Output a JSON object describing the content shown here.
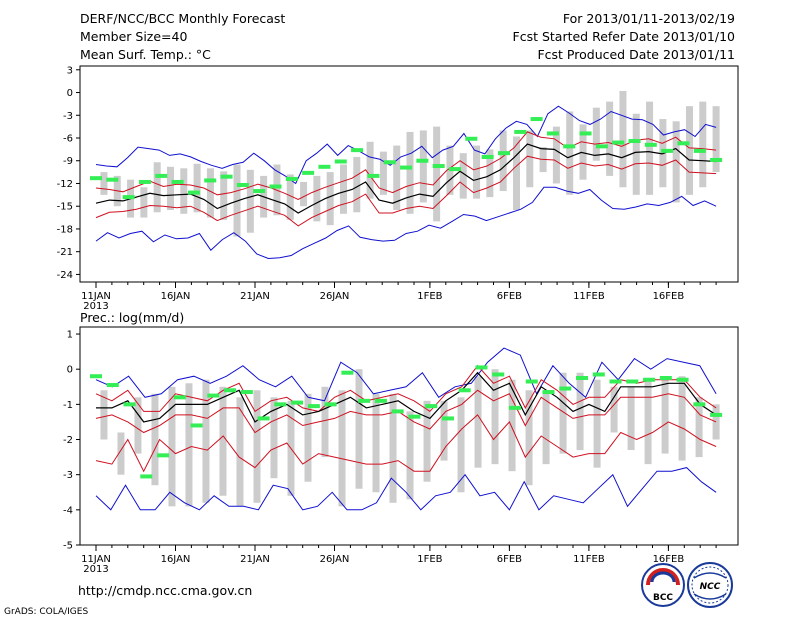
{
  "header": {
    "title_line1": "DERF/NCC/BCC Monthly Forecast",
    "title_line2": "Member Size=40",
    "title_line3": "Mean Surf. Temp.: °C",
    "right_line1": "For 2013/01/11-2013/02/19",
    "right_line2": "Fcst Started Refer Date 2013/01/10",
    "right_line3": "Fcst Produced Date 2013/01/11"
  },
  "precip_title": "Prec.: log(mm/d)",
  "footer": {
    "url": "http://cmdp.ncc.cma.gov.cn",
    "grads": "GrADS: COLA/IGES",
    "logo_bcc": "BCC",
    "logo_ncc": "NCC"
  },
  "colors": {
    "max_min": "#1010d0",
    "spread": "#d01020",
    "mean": "#000000",
    "box": "#cccccc",
    "obs": "#33ee55"
  },
  "chart_data": [
    {
      "type": "line",
      "title": "Mean Surf. Temp.: °C",
      "ylim": [
        -25,
        3.5
      ],
      "yticks": [
        3,
        0,
        -3,
        -6,
        -9,
        -12,
        -15,
        -18,
        -21,
        -24
      ],
      "x_tick_days": [
        0,
        5,
        10,
        15,
        21,
        26,
        31,
        36
      ],
      "x_tick_labels": [
        "11JAN",
        "16JAN",
        "21JAN",
        "26JAN",
        "1FEB",
        "6FEB",
        "11FEB",
        "16FEB"
      ],
      "x_year_label": "2013",
      "n_days": 40,
      "series": [
        {
          "name": "max",
          "values": [
            -9.5,
            -9.7,
            -9.8,
            -8.6,
            -7.2,
            -7.4,
            -7.6,
            -8.3,
            -8.1,
            -8.5,
            -9.1,
            -9.6,
            -10,
            -9.5,
            -9.2,
            -8,
            -9,
            -10.2,
            -11,
            -12,
            -9,
            -8,
            -6.8,
            -8.3,
            -7,
            -7.7,
            -8.5,
            -8.8,
            -9.6,
            -8.5,
            -8,
            -7.1,
            -8.6,
            -7.6,
            -7.1,
            -5.4,
            -7.6,
            -8.1,
            -6.1,
            -4.7,
            -3.8,
            -4.2,
            -5.8,
            -2.8,
            -1.8,
            -2.7,
            -3.7,
            -4.2,
            -3.5,
            -2.5,
            -3,
            -3.5,
            -3.6,
            -4.2,
            -5.6,
            -5.2,
            -4.9,
            -5.8,
            -4.2,
            -4.6
          ]
        },
        {
          "name": "min",
          "values": [
            -19.6,
            -18.5,
            -19.2,
            -18.6,
            -18.3,
            -19.7,
            -18.8,
            -19.3,
            -19.2,
            -18.6,
            -20.8,
            -19.4,
            -18.5,
            -19.6,
            -21.3,
            -21.9,
            -21.8,
            -21.5,
            -20.6,
            -19.9,
            -19.2,
            -18.2,
            -17.6,
            -19.1,
            -19.4,
            -19.6,
            -19.5,
            -18.6,
            -18.3,
            -17.5,
            -17.9,
            -17,
            -16.1,
            -16.3,
            -16.9,
            -16.4,
            -15.9,
            -15.4,
            -14.5,
            -12.5,
            -12.5,
            -13,
            -13.3,
            -12.8,
            -14.2,
            -15.3,
            -15.4,
            -15.1,
            -14.7,
            -14.9,
            -14.5,
            -13.7,
            -14.9,
            -14.3,
            -15
          ]
        },
        {
          "name": "upper",
          "values": [
            -12.6,
            -12.8,
            -13.1,
            -12.4,
            -11.7,
            -12.4,
            -12.1,
            -12.2,
            -12.6,
            -13.5,
            -13.2,
            -12.7,
            -12.1,
            -12.6,
            -13.3,
            -14.1,
            -13.2,
            -12.5,
            -11.9,
            -11.3,
            -10.2,
            -12.6,
            -13.2,
            -12.4,
            -11.9,
            -12.2,
            -10.3,
            -9,
            -10.2,
            -9.7,
            -8.7,
            -7.3,
            -5.2,
            -5.9,
            -6.1,
            -7.3,
            -6.5,
            -6.8,
            -6.6,
            -7.1,
            -6.3,
            -6.1,
            -6.7,
            -5.9,
            -7.3,
            -7.4,
            -7.6
          ]
        },
        {
          "name": "mean",
          "values": [
            -14.6,
            -14.2,
            -14.3,
            -13.8,
            -13.3,
            -13.6,
            -13.5,
            -13.4,
            -14.1,
            -15.3,
            -14.6,
            -14,
            -13.5,
            -14.1,
            -14.7,
            -15.9,
            -14.9,
            -14,
            -13.3,
            -12.8,
            -11.8,
            -14.2,
            -14.6,
            -13.9,
            -13.4,
            -13.7,
            -11.9,
            -10.4,
            -11.6,
            -11.1,
            -10.2,
            -8.6,
            -6.8,
            -7.4,
            -7.5,
            -8.6,
            -7.9,
            -8.3,
            -8.1,
            -8.6,
            -7.9,
            -7.8,
            -8.1,
            -7.4,
            -8.9,
            -9,
            -9.1
          ]
        },
        {
          "name": "lower",
          "values": [
            -16.5,
            -15.8,
            -15.7,
            -15.4,
            -14.9,
            -15,
            -15.2,
            -15,
            -15.8,
            -16.9,
            -16.2,
            -15.6,
            -15,
            -15.6,
            -16.2,
            -17.6,
            -16.5,
            -15.7,
            -14.9,
            -14.4,
            -13.4,
            -15.9,
            -15.9,
            -15.3,
            -15,
            -15.3,
            -13.6,
            -11.8,
            -13.2,
            -12.6,
            -11.8,
            -10,
            -8.4,
            -8.8,
            -8.9,
            -10,
            -9.3,
            -9.7,
            -9.5,
            -10.1,
            -9.4,
            -9.3,
            -9.6,
            -8.9,
            -10.5,
            -10.6,
            -10.7
          ]
        },
        {
          "name": "box_high",
          "values": [
            -10.5,
            -11,
            -11.5,
            -12.5,
            -9.2,
            -9.8,
            -10,
            -9.4,
            -10,
            -10.4,
            -9.5,
            -10.2,
            -11,
            -9.5,
            -10.8,
            -11.8,
            -11,
            -10.5,
            -9.5,
            -8.5,
            -6.5,
            -7.8,
            -7,
            -5.2,
            -5,
            -4.5,
            -7,
            -8,
            -7,
            -7.5,
            -5,
            -5.8,
            -5,
            -7.2,
            -4.5,
            -2.5,
            -4.2,
            -2,
            -1.2,
            0.2,
            -2.8,
            -1.2,
            -3.5,
            -3.8,
            -1.8,
            -1.2,
            -1.8,
            -2.2,
            -2.5,
            -3.8
          ]
        },
        {
          "name": "box_low",
          "values": [
            -13.5,
            -15,
            -16.5,
            -16.5,
            -15.8,
            -15.5,
            -16,
            -15.8,
            -16.5,
            -16.8,
            -19,
            -18.5,
            -16.5,
            -16.2,
            -16.8,
            -15,
            -17,
            -17.5,
            -16,
            -15.8,
            -14,
            -13.5,
            -15.5,
            -16,
            -14.5,
            -17,
            -13.5,
            -14,
            -14,
            -13.8,
            -13,
            -15.5,
            -12.5,
            -10.5,
            -12,
            -13.5,
            -11.5,
            -9,
            -11,
            -12.5,
            -13.5,
            -13.5,
            -12.5,
            -14.5,
            -13.5,
            -12.5,
            -10.5
          ]
        },
        {
          "name": "observed",
          "values": [
            -11.3,
            -11.5,
            -13.8,
            -11.8,
            -11,
            -11.8,
            -13.2,
            -11.6,
            -11.1,
            -12.2,
            -13,
            -12.4,
            -11.4,
            -10.6,
            -9.8,
            -9.1,
            -7.6,
            -11,
            -9.2,
            -9.9,
            -9,
            -9.7,
            -10.1,
            -6.1,
            -8.5,
            -8,
            -5.2,
            -3.5,
            -5.4,
            -7.1,
            -5.4,
            -7.1,
            -6.6,
            -6.4,
            -6.9,
            -7.7,
            -6.7,
            -7.7,
            -8.9
          ]
        }
      ]
    },
    {
      "type": "line",
      "title": "Prec.: log(mm/d)",
      "ylim": [
        -5,
        1.2
      ],
      "yticks": [
        1,
        0,
        -1,
        -2,
        -3,
        -4,
        -5
      ],
      "x_tick_days": [
        0,
        5,
        10,
        15,
        21,
        26,
        31,
        36
      ],
      "x_tick_labels": [
        "11JAN",
        "16JAN",
        "21JAN",
        "26JAN",
        "1FEB",
        "6FEB",
        "11FEB",
        "16FEB"
      ],
      "x_year_label": "2013",
      "n_days": 40,
      "series": [
        {
          "name": "max",
          "values": [
            -0.3,
            -0.5,
            -0.2,
            -0.8,
            -0.7,
            -0.3,
            -0.2,
            -0.4,
            -0.2,
            0.1,
            -0.3,
            -0.5,
            -0.2,
            -0.8,
            -0.9,
            0.2,
            -0.1,
            -0.7,
            -0.6,
            -0.5,
            -0.1,
            -0.8,
            -0.5,
            -0.4,
            0.2,
            0.6,
            0.4,
            -0.7,
            0.1,
            -0.4,
            -0.8,
            0.2,
            -0.3,
            0.3,
            0,
            0.3,
            0.2,
            0.1,
            -0.7
          ]
        },
        {
          "name": "min",
          "values": [
            -3.6,
            -4,
            -3.3,
            -4,
            -4,
            -3.5,
            -3.8,
            -4,
            -3.6,
            -3.9,
            -3.9,
            -4,
            -3.3,
            -3.4,
            -4,
            -3.9,
            -3.5,
            -4,
            -4,
            -3.8,
            -3.1,
            -3.5,
            -4,
            -3.6,
            -3.5,
            -3,
            -3.6,
            -3.5,
            -4,
            -3.2,
            -4,
            -3.6,
            -3.7,
            -3.8,
            -3.4,
            -3,
            -3.9,
            -3.4,
            -2.9,
            -2.9,
            -2.8,
            -3.2,
            -3.5
          ]
        },
        {
          "name": "upper",
          "values": [
            -0.7,
            -0.9,
            -0.6,
            -1.2,
            -1.2,
            -0.7,
            -0.8,
            -0.9,
            -0.6,
            -0.4,
            -1.2,
            -0.9,
            -0.8,
            -1.1,
            -1.2,
            -0.8,
            -0.6,
            -0.9,
            -0.8,
            -0.7,
            -0.9,
            -1.2,
            -0.7,
            -0.5,
            0.1,
            -0.4,
            -0.2,
            -1.1,
            -0.3,
            -0.6,
            -1,
            -0.8,
            -0.8,
            -0.3,
            -0.4,
            -0.3,
            -0.3,
            -0.3,
            -0.8,
            -1.1
          ]
        },
        {
          "name": "mean",
          "values": [
            -1.1,
            -1.1,
            -0.9,
            -1.5,
            -1.4,
            -1,
            -1,
            -1,
            -0.8,
            -0.6,
            -1.5,
            -1.2,
            -1,
            -1.3,
            -1.2,
            -1,
            -0.8,
            -1.1,
            -1,
            -0.9,
            -1.2,
            -1.4,
            -0.9,
            -0.6,
            -0.1,
            -0.6,
            -0.4,
            -1.3,
            -0.5,
            -0.8,
            -1.2,
            -1,
            -1.2,
            -0.5,
            -0.5,
            -0.5,
            -0.4,
            -0.4,
            -1,
            -1.3
          ]
        },
        {
          "name": "lower",
          "values": [
            -1.4,
            -1.3,
            -1.5,
            -1.8,
            -1.6,
            -1.3,
            -1.3,
            -1.4,
            -1.1,
            -1.1,
            -1.8,
            -1.5,
            -1.3,
            -1.6,
            -1.5,
            -1.4,
            -1.2,
            -1.3,
            -1.3,
            -1.2,
            -1.5,
            -1.7,
            -1.2,
            -1,
            -0.6,
            -0.9,
            -0.7,
            -1.6,
            -0.8,
            -1.1,
            -1.4,
            -1.3,
            -1.3,
            -0.8,
            -0.8,
            -0.8,
            -0.7,
            -0.8,
            -1.3,
            -1.5
          ]
        },
        {
          "name": "low_ens",
          "values": [
            -2.6,
            -2.7,
            -2,
            -2.9,
            -2,
            -2.4,
            -2.2,
            -2.3,
            -1.9,
            -2.5,
            -2.8,
            -2.3,
            -2.1,
            -2.7,
            -2.4,
            -2.5,
            -2.6,
            -2.7,
            -2.7,
            -2.6,
            -2.9,
            -2.9,
            -2.2,
            -1.7,
            -1.3,
            -2,
            -1.5,
            -2.5,
            -1.9,
            -2.2,
            -2.5,
            -2.4,
            -2.4,
            -1.8,
            -2,
            -1.8,
            -1.5,
            -1.7,
            -2,
            -2.2
          ]
        },
        {
          "name": "box_high",
          "values": [
            -0.6,
            -1.8,
            -0.8,
            -0.7,
            -0.5,
            -0.4,
            -0.3,
            -0.5,
            -0.8,
            -0.6,
            -0.8,
            -0.9,
            -0.7,
            -0.5,
            -0.6,
            0,
            -0.7,
            -0.7,
            -1.2,
            -0.9,
            -0.9,
            -0.8,
            -0.2,
            0,
            -0.3,
            -0.6,
            -0.7,
            -0.1,
            -0.1,
            -0.3,
            -0.5,
            -0.5,
            -0.3,
            -0.2,
            -0.2,
            -0.8,
            -1
          ]
        },
        {
          "name": "box_low",
          "values": [
            -2,
            -3,
            -2.4,
            -3.3,
            -3.9,
            -3.9,
            -3.8,
            -3.6,
            -3.9,
            -3.8,
            -3.1,
            -3.6,
            -3.2,
            -2.5,
            -3.9,
            -3.4,
            -3.5,
            -3.8,
            -3.7,
            -3.2,
            -2.6,
            -3.5,
            -2.8,
            -2.7,
            -2.9,
            -3.3,
            -2.7,
            -2.4,
            -2.3,
            -2.8,
            -1.8,
            -2.3,
            -2.7,
            -2.4,
            -2.6,
            -2.5,
            -2
          ]
        },
        {
          "name": "observed",
          "values": [
            -0.2,
            -0.45,
            -1,
            -3.05,
            -2.45,
            -0.8,
            -1.6,
            -0.75,
            -0.6,
            -0.65,
            -1.4,
            -1,
            -0.95,
            -1.05,
            -1,
            -0.1,
            -0.9,
            -0.9,
            -1.2,
            -1.35,
            -1.05,
            -1.4,
            -0.6,
            0.05,
            -0.15,
            -1.1,
            -0.35,
            -0.65,
            -0.55,
            -0.25,
            -0.15,
            -0.35,
            -0.35,
            -0.3,
            -0.25,
            -0.3,
            -1,
            -1.3
          ]
        }
      ]
    }
  ]
}
